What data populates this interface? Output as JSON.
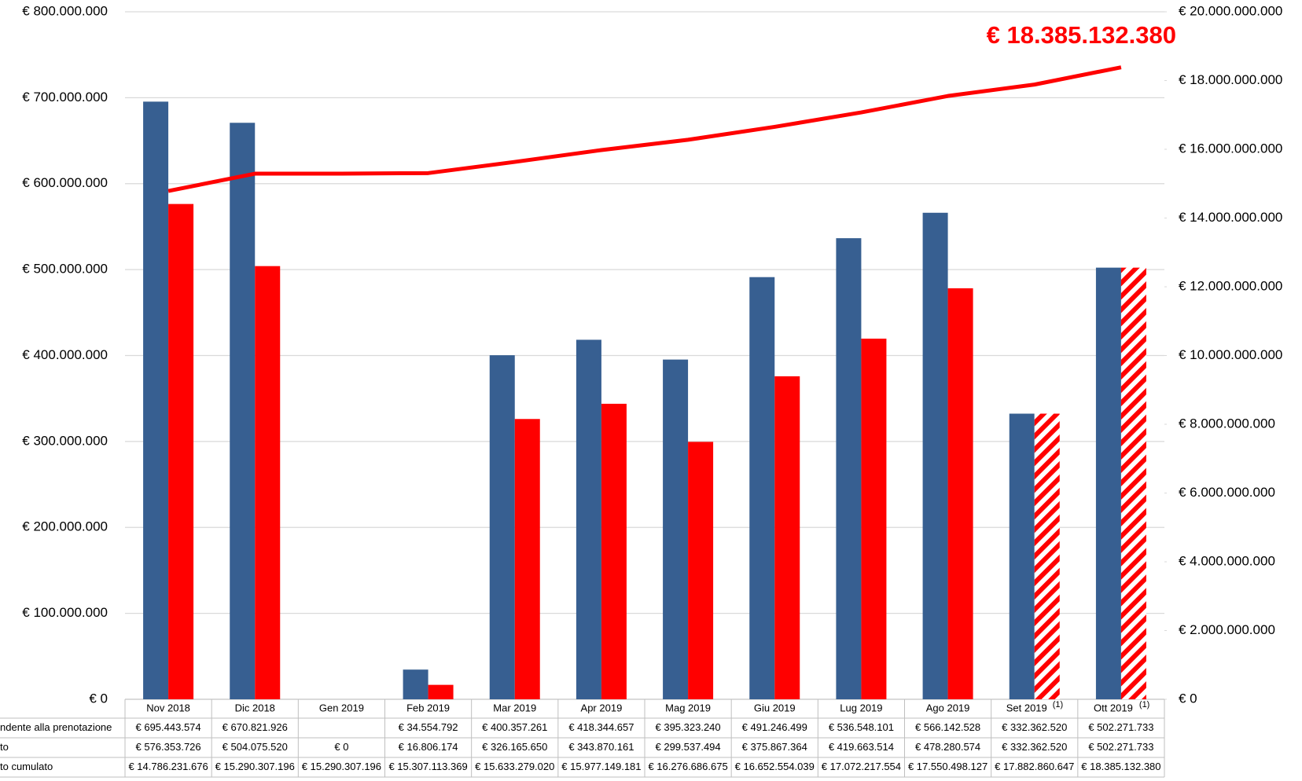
{
  "chart_data": {
    "type": "bar",
    "categories": [
      "Nov 2018",
      "Dic 2018",
      "Gen 2019",
      "Feb 2019",
      "Mar 2019",
      "Apr 2019",
      "Mag 2019",
      "Giu 2019",
      "Lug 2019",
      "Ago 2019",
      "Set 2019",
      "Ott 2019"
    ],
    "category_notes": [
      null,
      null,
      null,
      null,
      null,
      null,
      null,
      null,
      null,
      null,
      "(1)",
      "(1)"
    ],
    "series": [
      {
        "name": "ndente alla prenotazione",
        "color": "#375f91",
        "type": "bar",
        "values": [
          695443574,
          670821926,
          null,
          34554792,
          400357261,
          418344657,
          395323240,
          491246499,
          536548101,
          566142528,
          332362520,
          502271733
        ],
        "value_labels": [
          "€ 695.443.574",
          "€ 670.821.926",
          null,
          "€ 34.554.792",
          "€ 400.357.261",
          "€ 418.344.657",
          "€ 395.323.240",
          "€ 491.246.499",
          "€ 536.548.101",
          "€ 566.142.528",
          "€ 332.362.520",
          "€ 502.271.733"
        ]
      },
      {
        "name": "to",
        "color": "#ff0000",
        "type": "bar",
        "hatched": [
          false,
          false,
          false,
          false,
          false,
          false,
          false,
          false,
          false,
          false,
          true,
          true
        ],
        "values": [
          576353726,
          504075520,
          0,
          16806174,
          326165650,
          343870161,
          299537494,
          375867364,
          419663514,
          478280574,
          332362520,
          502271733
        ],
        "value_labels": [
          "€ 576.353.726",
          "€ 504.075.520",
          "€ 0",
          "€ 16.806.174",
          "€ 326.165.650",
          "€ 343.870.161",
          "€ 299.537.494",
          "€ 375.867.364",
          "€ 419.663.514",
          "€ 478.280.574",
          "€ 332.362.520",
          "€ 502.271.733"
        ]
      },
      {
        "name": "to cumulato",
        "color": "#ff0000",
        "type": "line",
        "axis": "y2",
        "values": [
          14786231676,
          15290307196,
          15290307196,
          15307113369,
          15633279020,
          15977149181,
          16276686675,
          16652554039,
          17072217554,
          17550498127,
          17882860647,
          18385132380
        ],
        "value_labels": [
          "€ 14.786.231.676",
          "€ 15.290.307.196",
          "€ 15.290.307.196",
          "€ 15.307.113.369",
          "€ 15.633.279.020",
          "€ 15.977.149.181",
          "€ 16.276.686.675",
          "€ 16.652.554.039",
          "€ 17.072.217.554",
          "€ 17.550.498.127",
          "€ 17.882.860.647",
          "€ 18.385.132.380"
        ]
      }
    ],
    "ylim": [
      0,
      800000000
    ],
    "yticks": [
      {
        "value": 0,
        "label": "€ 0"
      },
      {
        "value": 100000000,
        "label": "€ 100.000.000"
      },
      {
        "value": 200000000,
        "label": "€ 200.000.000"
      },
      {
        "value": 300000000,
        "label": "€ 300.000.000"
      },
      {
        "value": 400000000,
        "label": "€ 400.000.000"
      },
      {
        "value": 500000000,
        "label": "€ 500.000.000"
      },
      {
        "value": 600000000,
        "label": "€ 600.000.000"
      },
      {
        "value": 700000000,
        "label": "€ 700.000.000"
      },
      {
        "value": 800000000,
        "label": "€ 800.000.000"
      }
    ],
    "y2lim": [
      0,
      20000000000
    ],
    "y2ticks": [
      {
        "value": 0,
        "label": "€ 0"
      },
      {
        "value": 2000000000,
        "label": "€ 2.000.000.000"
      },
      {
        "value": 4000000000,
        "label": "€ 4.000.000.000"
      },
      {
        "value": 6000000000,
        "label": "€ 6.000.000.000"
      },
      {
        "value": 8000000000,
        "label": "€ 8.000.000.000"
      },
      {
        "value": 10000000000,
        "label": "€ 10.000.000.000"
      },
      {
        "value": 12000000000,
        "label": "€ 12.000.000.000"
      },
      {
        "value": 14000000000,
        "label": "€ 14.000.000.000"
      },
      {
        "value": 16000000000,
        "label": "€ 16.000.000.000"
      },
      {
        "value": 18000000000,
        "label": "€ 18.000.000.000"
      },
      {
        "value": 20000000000,
        "label": "€ 20.000.000.000"
      }
    ],
    "grid": true
  }
}
